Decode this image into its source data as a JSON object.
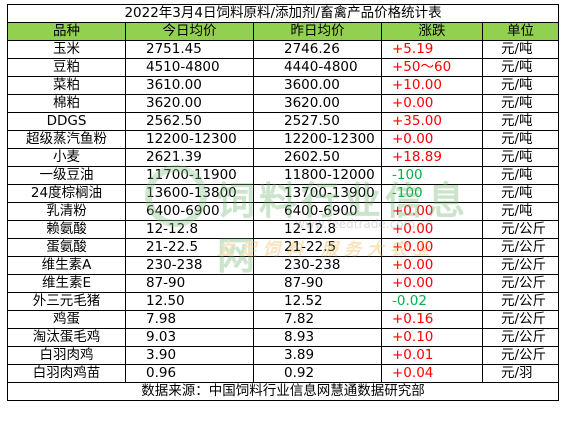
{
  "title": "2022年3月4日饲料原料/添加剂/畜禽产品价格统计表",
  "header": {
    "name": "品种",
    "today": "今日均价",
    "yesterday": "昨日均价",
    "change": "涨跌",
    "unit": "单位"
  },
  "rows": [
    {
      "name": "玉米",
      "today": "2751.45",
      "yesterday": "2746.26",
      "change": "+5.19",
      "unit": "元/吨",
      "dir": "up"
    },
    {
      "name": "豆粕",
      "today": "4510-4800",
      "yesterday": "4440-4800",
      "change": "+50～60",
      "unit": "元/吨",
      "dir": "up"
    },
    {
      "name": "菜粕",
      "today": "3610.00",
      "yesterday": "3600.00",
      "change": "+10.00",
      "unit": "元/吨",
      "dir": "up"
    },
    {
      "name": "棉粕",
      "today": "3620.00",
      "yesterday": "3620.00",
      "change": "+0.00",
      "unit": "元/吨",
      "dir": "up"
    },
    {
      "name": "DDGS",
      "today": "2562.50",
      "yesterday": "2527.50",
      "change": "+35.00",
      "unit": "元/吨",
      "dir": "up"
    },
    {
      "name": "超级蒸汽鱼粉",
      "today": "12200-12300",
      "yesterday": "12200-12300",
      "change": "+0.00",
      "unit": "元/吨",
      "dir": "up"
    },
    {
      "name": "小麦",
      "today": "2621.39",
      "yesterday": "2602.50",
      "change": "+18.89",
      "unit": "元/吨",
      "dir": "up"
    },
    {
      "name": "一级豆油",
      "today": "11700-11900",
      "yesterday": "11800-12000",
      "change": "-100",
      "unit": "元/吨",
      "dir": "down"
    },
    {
      "name": "24度棕榈油",
      "today": "13600-13800",
      "yesterday": "13700-13900",
      "change": "-100",
      "unit": "元/吨",
      "dir": "down"
    },
    {
      "name": "乳清粉",
      "today": "6400-6900",
      "yesterday": "6400-6900",
      "change": "+0.00",
      "unit": "元/吨",
      "dir": "up"
    },
    {
      "name": "赖氨酸",
      "today": "12-12.8",
      "yesterday": "12-12.8",
      "change": "+0.00",
      "unit": "元/公斤",
      "dir": "up"
    },
    {
      "name": "蛋氨酸",
      "today": "21-22.5",
      "yesterday": "21-22.5",
      "change": "+0.00",
      "unit": "元/公斤",
      "dir": "up"
    },
    {
      "name": "维生素A",
      "today": "230-238",
      "yesterday": "230-238",
      "change": "+0.00",
      "unit": "元/公斤",
      "dir": "up"
    },
    {
      "name": "维生素E",
      "today": "87-90",
      "yesterday": "87-90",
      "change": "+0.00",
      "unit": "元/公斤",
      "dir": "up"
    },
    {
      "name": "外三元毛猪",
      "today": "12.50",
      "yesterday": "12.52",
      "change": "-0.02",
      "unit": "元/公斤",
      "dir": "down"
    },
    {
      "name": "鸡蛋",
      "today": "7.98",
      "yesterday": "7.82",
      "change": "+0.16",
      "unit": "元/公斤",
      "dir": "up"
    },
    {
      "name": "淘汰蛋毛鸡",
      "today": "9.03",
      "yesterday": "8.93",
      "change": "+0.10",
      "unit": "元/公斤",
      "dir": "up"
    },
    {
      "name": "白羽肉鸡",
      "today": "3.90",
      "yesterday": "3.89",
      "change": "+0.01",
      "unit": "元/公斤",
      "dir": "up"
    },
    {
      "name": "白羽肉鸡苗",
      "today": "0.96",
      "yesterday": "0.92",
      "change": "+0.04",
      "unit": "元/羽",
      "dir": "up"
    }
  ],
  "source": "数据来源：中国饲料行业信息网慧通数据研究部",
  "colors": {
    "header_bg": "#92d050",
    "up": "#ff0000",
    "down": "#00b050"
  },
  "watermark": {
    "name": "饲料行业信息网",
    "url": "www.feedtrade.com.cn",
    "slogan": "立足饲料 服务大农业",
    "logo_icon": "feedtrade-logo-icon"
  }
}
